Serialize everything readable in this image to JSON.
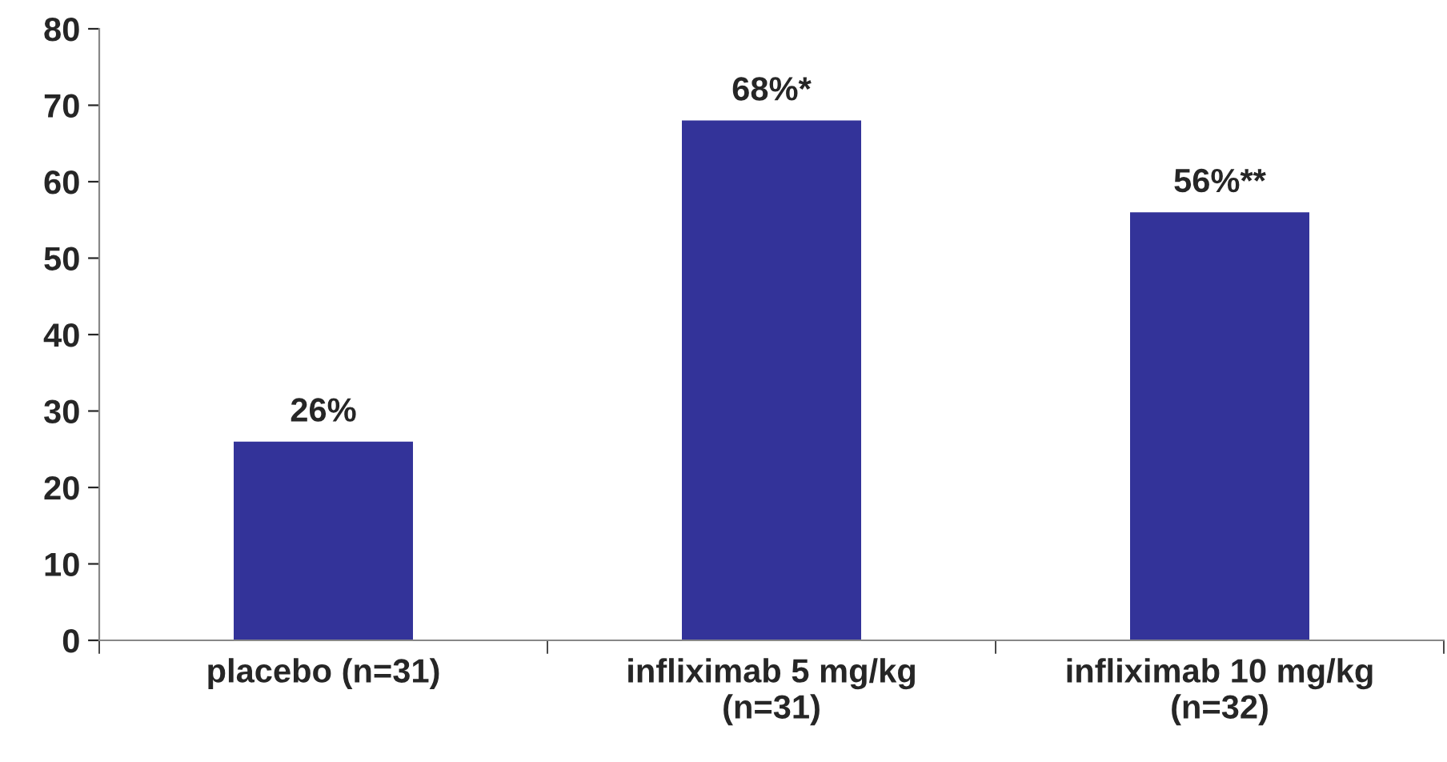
{
  "chart_data": {
    "type": "bar",
    "categories": [
      "placebo (n=31)",
      "infliximab 5 mg/kg\n(n=31)",
      "infliximab 10 mg/kg\n(n=32)"
    ],
    "values": [
      26,
      68,
      56
    ],
    "color": "#333399",
    "value_labels": [
      "26%",
      "68%*",
      "56%**"
    ],
    "ylim": [
      0,
      80
    ],
    "yticks": [
      0,
      10,
      20,
      30,
      40,
      50,
      60,
      70,
      80
    ],
    "grid": false,
    "legend": false
  }
}
